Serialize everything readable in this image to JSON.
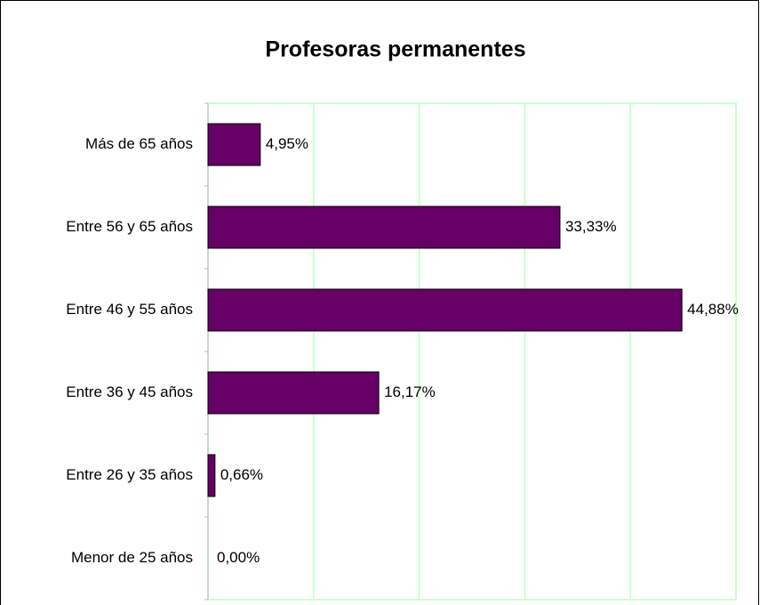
{
  "chart_data": {
    "type": "barh",
    "title": "Profesoras permanentes",
    "categories": [
      "Más de 65 años",
      "Entre 56 y 65 años",
      "Entre 46 y 55 años",
      "Entre 36 y 45 años",
      "Entre 26 y 35 años",
      "Menor de 25 años"
    ],
    "values": [
      4.95,
      33.33,
      44.88,
      16.17,
      0.66,
      0.0
    ],
    "value_labels": [
      "4,95%",
      "33,33%",
      "44,88%",
      "16,17%",
      "0,66%",
      "0,00%"
    ],
    "color": "#660066",
    "xlim": [
      0,
      50
    ],
    "xticks": [
      0,
      10,
      20,
      30,
      40,
      50
    ],
    "grid": true
  }
}
